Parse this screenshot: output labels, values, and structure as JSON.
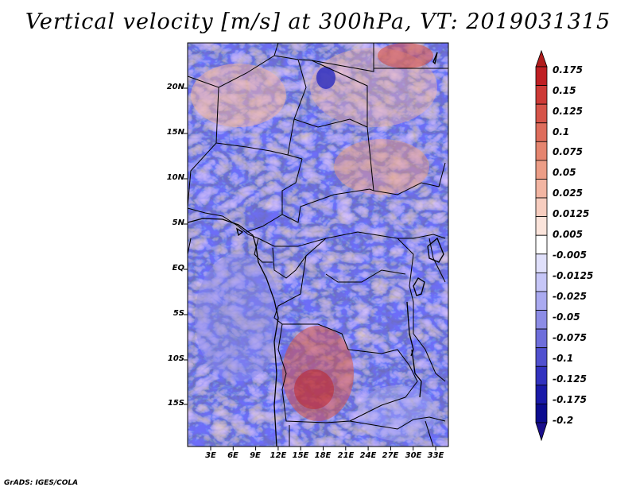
{
  "title": "Vertical velocity [m/s] at 300hPa, VT: 2019031315",
  "credit": "GrADS: IGES/COLA",
  "map": {
    "variable": "Vertical velocity",
    "units": "m/s",
    "level": "300hPa",
    "valid_time": "2019031315",
    "lat_labels": [
      "20N",
      "15N",
      "10N",
      "5N",
      "EQ",
      "5S",
      "10S",
      "15S"
    ],
    "lon_labels": [
      "3E",
      "6E",
      "9E",
      "12E",
      "15E",
      "18E",
      "21E",
      "24E",
      "27E",
      "30E",
      "33E"
    ]
  },
  "colorbar": {
    "labels": [
      "0.175",
      "0.15",
      "0.125",
      "0.1",
      "0.075",
      "0.05",
      "0.025",
      "0.0125",
      "0.005",
      "-0.005",
      "-0.0125",
      "-0.025",
      "-0.05",
      "-0.075",
      "-0.1",
      "-0.125",
      "-0.175",
      "-0.2"
    ],
    "colors": [
      "#bf1f23",
      "#cd3a36",
      "#d65449",
      "#de6d5c",
      "#e5856f",
      "#ec9d86",
      "#f2b5a2",
      "#f7cdbf",
      "#fbe4db",
      "#ffffff",
      "#e0e0fb",
      "#c6c6f7",
      "#aaaaf0",
      "#8c8ce6",
      "#6e6edb",
      "#5050cf",
      "#3232bf",
      "#1a1aa8",
      "#0c0c8f"
    ],
    "end_colors": {
      "top": "#b01c1c",
      "bottom": "#1a0f8c"
    }
  }
}
